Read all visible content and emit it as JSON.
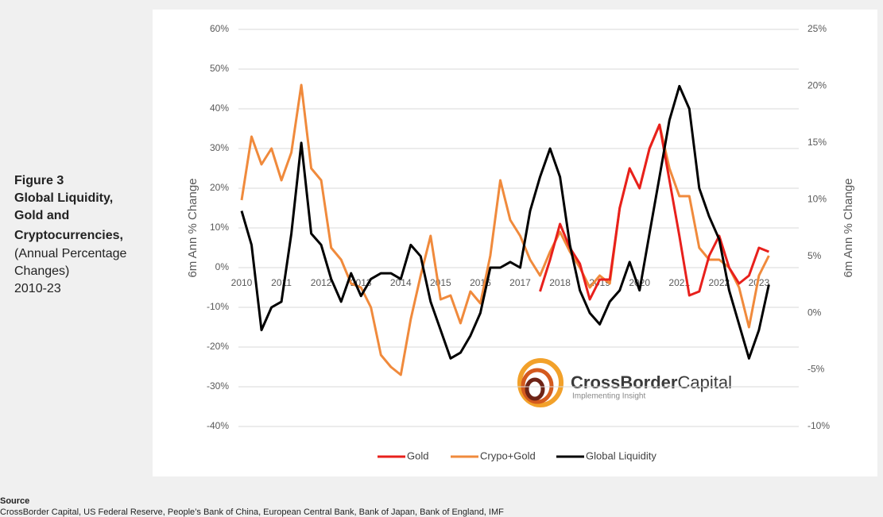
{
  "caption": {
    "figure": "Figure 3",
    "title": [
      "Global Liquidity,",
      "Gold and",
      "Cryptocurrencies,"
    ],
    "subtitle": [
      "(Annual Percentage",
      "Changes)",
      "2010-23"
    ]
  },
  "source": {
    "heading": "Source",
    "text": "CrossBorder Capital, US Federal Reserve, People’s Bank of China, European Central Bank, Bank of Japan, Bank of England, IMF"
  },
  "logo": {
    "name_bold": "CrossBorder",
    "name": "Capital",
    "tagline": "Implementing Insight"
  },
  "chart_data": {
    "type": "line",
    "ylabel": "6m Ann % Change",
    "y2label": "6m Ann % Change",
    "x": [
      2010,
      2010.25,
      2010.5,
      2010.75,
      2011,
      2011.25,
      2011.5,
      2011.75,
      2012,
      2012.25,
      2012.5,
      2012.75,
      2013,
      2013.25,
      2013.5,
      2013.75,
      2014,
      2014.25,
      2014.5,
      2014.75,
      2015,
      2015.25,
      2015.5,
      2015.75,
      2016,
      2016.25,
      2016.5,
      2016.75,
      2017,
      2017.25,
      2017.5,
      2017.75,
      2018,
      2018.25,
      2018.5,
      2018.75,
      2019,
      2019.25,
      2019.5,
      2019.75,
      2020,
      2020.25,
      2020.5,
      2020.75,
      2021,
      2021.25,
      2021.5,
      2021.75,
      2022,
      2022.25,
      2022.5,
      2022.75,
      2023,
      2023.25
    ],
    "xlim": [
      2010,
      2024
    ],
    "xticks": [
      2010,
      2011,
      2012,
      2013,
      2014,
      2015,
      2016,
      2017,
      2018,
      2019,
      2020,
      2021,
      2022,
      2023
    ],
    "ylim": [
      -40,
      60
    ],
    "yticks": [
      {
        "value": -40,
        "label": "-40%"
      },
      {
        "value": -30,
        "label": "-30%"
      },
      {
        "value": -20,
        "label": "-20%"
      },
      {
        "value": -10,
        "label": "-10%"
      },
      {
        "value": 0,
        "label": "0%"
      },
      {
        "value": 10,
        "label": "10%"
      },
      {
        "value": 20,
        "label": "20%"
      },
      {
        "value": 30,
        "label": "30%"
      },
      {
        "value": 40,
        "label": "40%"
      },
      {
        "value": 50,
        "label": "50%"
      },
      {
        "value": 60,
        "label": "60%"
      }
    ],
    "y2lim": [
      -10,
      25
    ],
    "y2ticks": [
      {
        "value": -10,
        "label": "-10%"
      },
      {
        "value": -5,
        "label": "-5%"
      },
      {
        "value": 0,
        "label": "0%"
      },
      {
        "value": 5,
        "label": "5%"
      },
      {
        "value": 10,
        "label": "10%"
      },
      {
        "value": 15,
        "label": "15%"
      },
      {
        "value": 20,
        "label": "20%"
      },
      {
        "value": 25,
        "label": "25%"
      }
    ],
    "grid": true,
    "series": [
      {
        "name": "Gold",
        "color": "#e8201c",
        "values": [
          null,
          null,
          null,
          null,
          null,
          null,
          null,
          null,
          null,
          null,
          null,
          null,
          null,
          null,
          null,
          null,
          null,
          null,
          null,
          null,
          null,
          null,
          null,
          null,
          null,
          null,
          null,
          null,
          null,
          null,
          -6,
          2,
          11,
          5,
          1,
          -8,
          -3,
          -3,
          15,
          25,
          20,
          30,
          36,
          22,
          8,
          -7,
          -6,
          3,
          8,
          0,
          -4,
          -2,
          5,
          4
        ]
      },
      {
        "name": "Crypo+Gold",
        "color": "#f08a3c",
        "values": [
          17,
          33,
          26,
          30,
          22,
          29,
          46,
          25,
          22,
          5,
          2,
          -4,
          -5,
          -10,
          -22,
          -25,
          -27,
          -13,
          -2,
          8,
          -8,
          -7,
          -14,
          -6,
          -9,
          3,
          22,
          12,
          8,
          2,
          -2,
          4,
          9,
          4,
          0,
          -5,
          -2,
          -4,
          15,
          25,
          20,
          30,
          36,
          25,
          18,
          18,
          5,
          2,
          2,
          0,
          -5,
          -15,
          -2,
          3
        ]
      },
      {
        "name": "Global Liquidity",
        "color": "#000000",
        "axis": "y2",
        "values": [
          9,
          6,
          -1.5,
          0.5,
          1,
          7,
          15,
          7,
          6,
          3,
          1,
          3.5,
          1.5,
          3,
          3.5,
          3.5,
          3,
          6,
          5,
          1,
          -1.5,
          -4,
          -3.5,
          -2,
          0,
          4,
          4,
          4.5,
          4,
          9,
          12,
          14.5,
          12,
          6,
          2,
          0,
          -1,
          1,
          2,
          4.5,
          2,
          7,
          12,
          17,
          20,
          18,
          11,
          8.5,
          6.5,
          2,
          -1,
          -4,
          -1.5,
          2.5
        ]
      }
    ]
  }
}
